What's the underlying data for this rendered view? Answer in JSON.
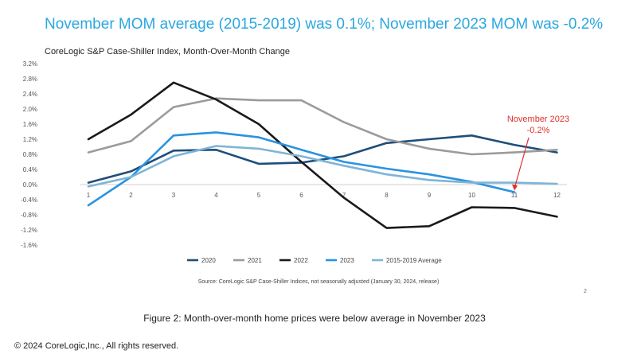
{
  "headline": "November MOM average (2015-2019) was 0.1%; November 2023 MOM was -0.2%",
  "source": "Source: CoreLogic S&P Case-Shiller Indices, not seasonally adjusted (January 30, 2024, release)",
  "page_number": "2",
  "caption": "Figure 2: Month-over-month home prices were below average in November 2023",
  "copyright": "© 2024 CoreLogic,Inc., All rights reserved.",
  "chart_data": {
    "type": "line",
    "title": "CoreLogic S&P Case-Shiller Index, Month-Over-Month Change",
    "xlabel": "",
    "ylabel": "",
    "x": [
      1,
      2,
      3,
      4,
      5,
      6,
      7,
      8,
      9,
      10,
      11,
      12
    ],
    "y_ticks": [
      "3.2%",
      "2.8%",
      "2.4%",
      "2.0%",
      "1.6%",
      "1.2%",
      "0.8%",
      "0.4%",
      "0.0%",
      "-0.4%",
      "-0.8%",
      "-1.2%",
      "-1.6%"
    ],
    "ylim": [
      -1.6,
      3.2
    ],
    "grid": false,
    "legend_position": "bottom",
    "series": [
      {
        "name": "2020",
        "color": "#1f4e79",
        "values": [
          0.05,
          0.35,
          0.9,
          0.92,
          0.55,
          0.58,
          0.75,
          1.1,
          1.2,
          1.3,
          1.05,
          0.85
        ]
      },
      {
        "name": "2021",
        "color": "#9b9b9b",
        "values": [
          0.85,
          1.15,
          2.05,
          2.28,
          2.23,
          2.23,
          1.65,
          1.2,
          0.95,
          0.8,
          0.85,
          0.92
        ]
      },
      {
        "name": "2022",
        "color": "#1a1a1a",
        "values": [
          1.2,
          1.85,
          2.7,
          2.25,
          1.6,
          0.6,
          -0.35,
          -1.15,
          -1.1,
          -0.6,
          -0.62,
          -0.85
        ]
      },
      {
        "name": "2023",
        "color": "#2a93e0",
        "values": [
          -0.55,
          0.2,
          1.3,
          1.38,
          1.25,
          0.92,
          0.6,
          0.42,
          0.27,
          0.07,
          -0.2,
          null
        ]
      },
      {
        "name": "2015-2019 Average",
        "color": "#7fb4d6",
        "values": [
          -0.05,
          0.2,
          0.75,
          1.02,
          0.95,
          0.75,
          0.5,
          0.27,
          0.12,
          0.05,
          0.05,
          0.02
        ]
      }
    ],
    "annotation": {
      "line1": "November 2023",
      "line2": "-0.2%",
      "color": "#e0302a",
      "x": 11,
      "y": -0.2
    }
  }
}
